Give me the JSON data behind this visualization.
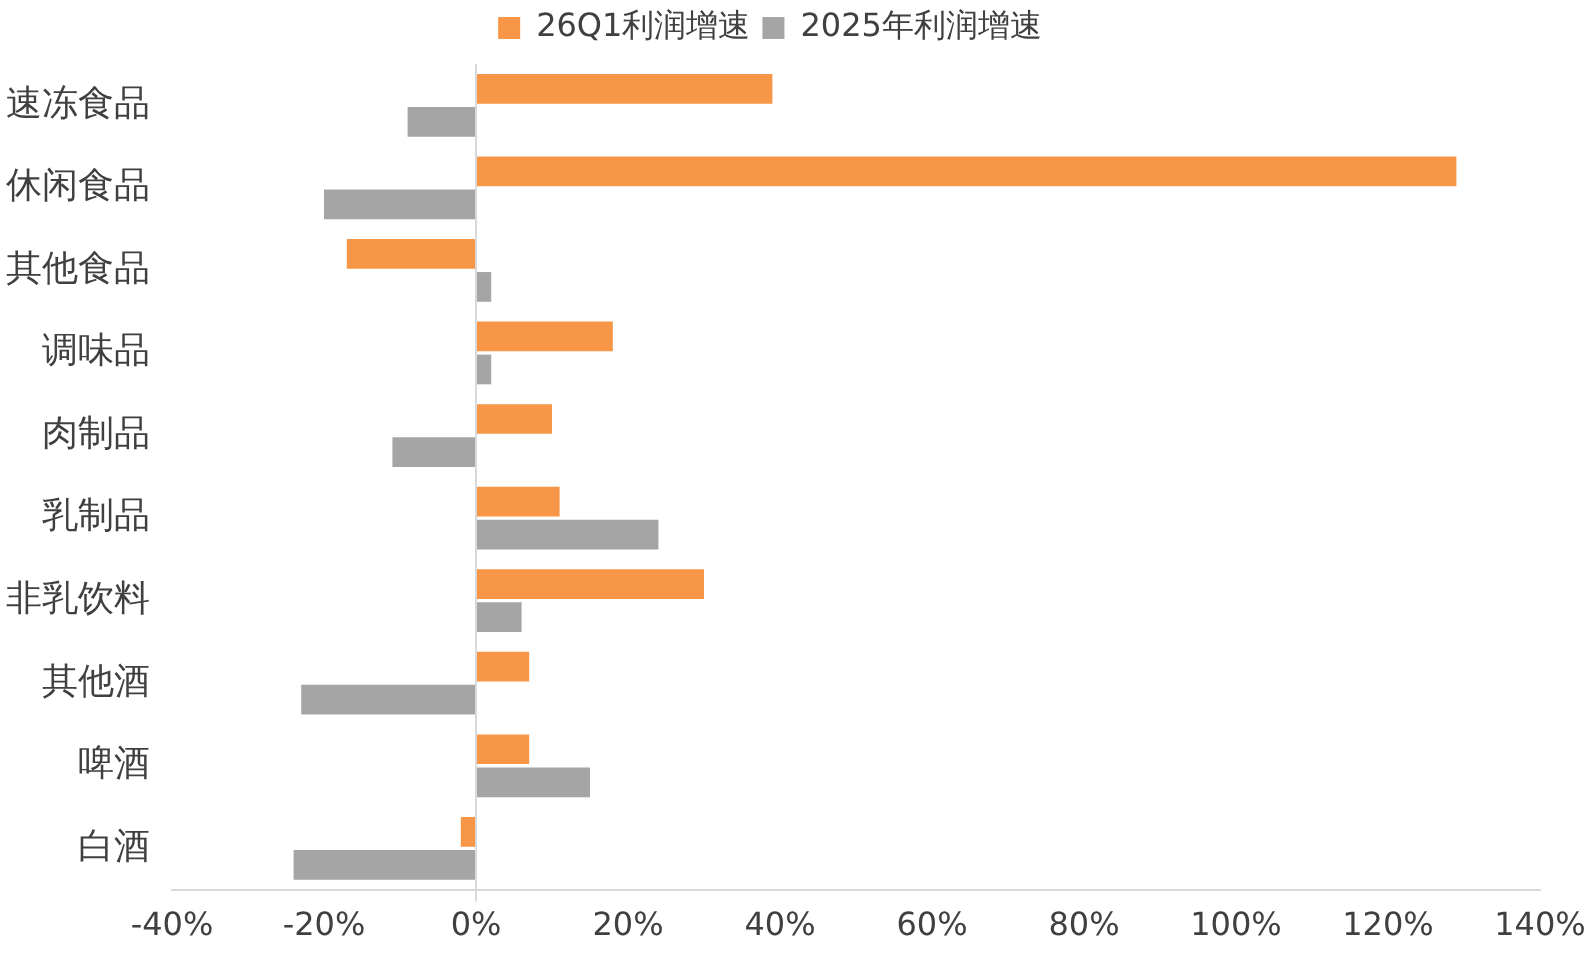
{
  "chart_data": {
    "type": "bar",
    "orientation": "horizontal",
    "legend": "top",
    "categories": [
      "速冻食品",
      "休闲食品",
      "其他食品",
      "调味品",
      "肉制品",
      "乳制品",
      "非乳饮料",
      "其他酒",
      "啤酒",
      "白酒"
    ],
    "series": [
      {
        "name": "26Q1利润增速",
        "color": "#f79646",
        "values": [
          39,
          129,
          -17,
          18,
          10,
          11,
          30,
          7,
          7,
          -2
        ]
      },
      {
        "name": "2025年利润增速",
        "color": "#a5a5a5",
        "values": [
          -9,
          -20,
          2,
          2,
          -11,
          24,
          6,
          -23,
          15,
          -24
        ]
      }
    ],
    "xlim": [
      -40,
      140
    ],
    "xticks": [
      {
        "value": -40,
        "label": "-40%"
      },
      {
        "value": -20,
        "label": "-20%"
      },
      {
        "value": 0,
        "label": "0%"
      },
      {
        "value": 20,
        "label": "20%"
      },
      {
        "value": 40,
        "label": "40%"
      },
      {
        "value": 60,
        "label": "60%"
      },
      {
        "value": 80,
        "label": "80%"
      },
      {
        "value": 100,
        "label": "100%"
      },
      {
        "value": 120,
        "label": "120%"
      },
      {
        "value": 140,
        "label": "140%"
      }
    ]
  }
}
